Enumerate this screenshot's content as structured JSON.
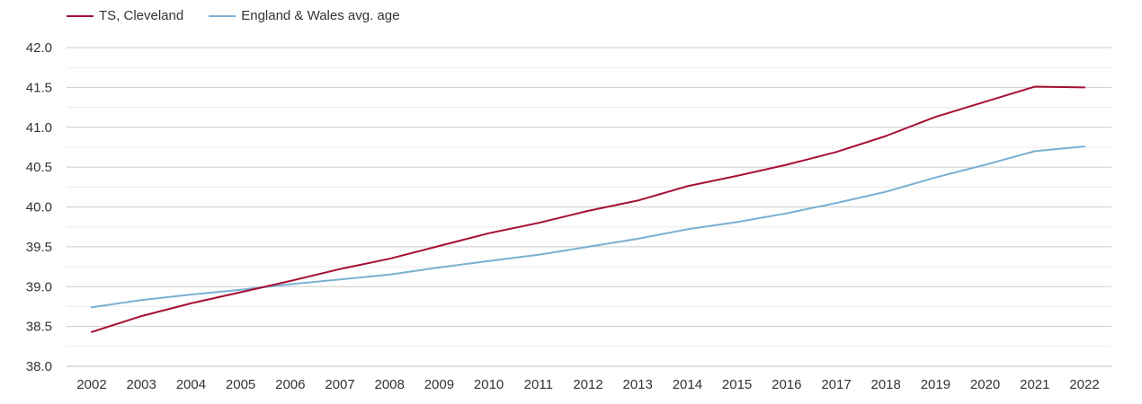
{
  "chart_data": {
    "type": "line",
    "title": "",
    "xlabel": "",
    "ylabel": "",
    "categories": [
      "2002",
      "2003",
      "2004",
      "2005",
      "2006",
      "2007",
      "2008",
      "2009",
      "2010",
      "2011",
      "2012",
      "2013",
      "2014",
      "2015",
      "2016",
      "2017",
      "2018",
      "2019",
      "2020",
      "2021",
      "2022"
    ],
    "y_ticks": [
      "38.0",
      "38.5",
      "39.0",
      "39.5",
      "40.0",
      "40.5",
      "41.0",
      "41.5",
      "42.0"
    ],
    "ylim": [
      38.0,
      42.0
    ],
    "grid": true,
    "legend_position": "top-left",
    "series": [
      {
        "name": "TS, Cleveland",
        "color": "#a50f34",
        "values": [
          38.43,
          38.63,
          38.79,
          38.93,
          39.07,
          39.22,
          39.35,
          39.51,
          39.67,
          39.8,
          39.95,
          40.08,
          40.26,
          40.39,
          40.53,
          40.69,
          40.89,
          41.13,
          41.32,
          41.51,
          41.5
        ]
      },
      {
        "name": "England & Wales avg. age",
        "color": "#7bafd4",
        "values": [
          38.74,
          38.83,
          38.9,
          38.96,
          39.03,
          39.09,
          39.15,
          39.24,
          39.32,
          39.4,
          39.5,
          39.6,
          39.72,
          39.81,
          39.92,
          40.05,
          40.19,
          40.37,
          40.53,
          40.7,
          40.76
        ]
      }
    ]
  }
}
